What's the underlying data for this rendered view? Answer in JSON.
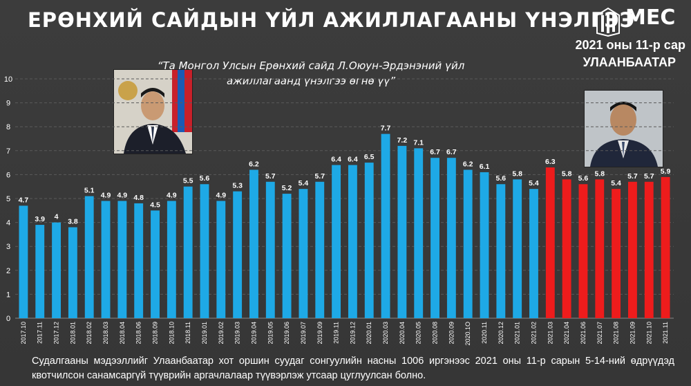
{
  "header": {
    "title": "ЕРӨНХИЙ САЙДЫН ҮЙЛ АЖИЛЛАГААНЫ ҮНЭЛГЭЭ",
    "logo_text": "MEC",
    "date_line": "2021 оны 11-р сар",
    "city_line": "УЛААНБААТАР"
  },
  "question": "“Та Монгол Улсын Ерөнхий сайд Л.Оюун-Эрдэнэний үйл ажиллагаанд үнэлгээ өгнө үү”",
  "footer": "Судалгааны мэдээллийг Улаанбаатар хот оршин суудаг сонгуулийн насны 1006 иргэнээс 2021 оны 11-р сарын 5-14-ний өдрүүдэд квотчилсон санамсаргүй түүврийн аргачлалаар түүвэрлэж утсаар цуглуулсан болно.",
  "colors": {
    "bar_blue": "#1ea9e6",
    "bar_red": "#ee1c1c",
    "background": "#3a3a3a"
  },
  "chart_data": {
    "type": "bar",
    "title": "",
    "xlabel": "",
    "ylabel": "",
    "ylim": [
      0,
      10
    ],
    "yticks": [
      "0",
      "1",
      "2",
      "3",
      "4",
      "5",
      "6",
      "7",
      "8",
      "9",
      "10"
    ],
    "grid": true,
    "categories": [
      "2017.10",
      "2017.11",
      "2017.12",
      "2018.01",
      "2018.02",
      "2018.03",
      "2018.04",
      "2018.06",
      "2018.09",
      "2018.10",
      "2018.11",
      "2019.01",
      "2019.02",
      "2019.03",
      "2019.04",
      "2019.05",
      "2019.06",
      "2019.07",
      "2019.09",
      "2019.11",
      "2019.12",
      "2020.01",
      "2020.03",
      "2020.04",
      "2020.05",
      "2020.08",
      "2020.09",
      "2020.1O",
      "2020.11",
      "2020.12",
      "2021.01",
      "2021.02",
      "2021.03",
      "2021.04",
      "2021.06",
      "2021.07",
      "2021.08",
      "2021.09",
      "2021.10",
      "2021.11"
    ],
    "values": [
      4.7,
      3.9,
      4,
      3.8,
      5.1,
      4.9,
      4.9,
      4.8,
      4.5,
      4.9,
      5.5,
      5.6,
      4.9,
      5.3,
      6.2,
      5.7,
      5.2,
      5.4,
      5.7,
      6.4,
      6.4,
      6.5,
      7.7,
      7.2,
      7.1,
      6.7,
      6.7,
      6.2,
      6.1,
      5.6,
      5.8,
      5.4,
      6.3,
      5.8,
      5.6,
      5.8,
      5.4,
      5.7,
      5.7,
      5.9
    ],
    "value_labels": [
      "4.7",
      "3.9",
      "4",
      "3.8",
      "5.1",
      "4.9",
      "4.9",
      "4.8",
      "4.5",
      "4.9",
      "5.5",
      "5.6",
      "4.9",
      "5.3",
      "6.2",
      "5.7",
      "5.2",
      "5.4",
      "5.7",
      "6.4",
      "6.4",
      "6.5",
      "7.7",
      "7.2",
      "7.1",
      "6.7",
      "6.7",
      "6.2",
      "6.1",
      "5.6",
      "5.8",
      "5.4",
      "6.3",
      "5.8",
      "5.6",
      "5.8",
      "5.4",
      "5.7",
      "5.7",
      "5.9"
    ],
    "red_from_index": 32
  }
}
